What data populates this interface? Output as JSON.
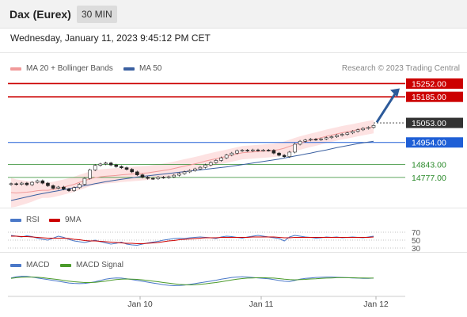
{
  "header": {
    "instrument": "Dax (Eurex)",
    "timeframe": "30 MIN",
    "datetime": "Wednesday, January 11, 2023 9:45:12 PM CET"
  },
  "legend": {
    "ma20_label": "MA 20 + Bollinger Bands",
    "ma50_label": "MA 50",
    "credit": "Research © 2023 Trading Central",
    "rsi_label": "RSI",
    "rsi_ma_label": "9MA",
    "macd_label": "MACD",
    "macd_signal_label": "MACD Signal"
  },
  "colors": {
    "candle": "#222222",
    "up_candle": "#ffffff",
    "bollinger_fill": "#fde2e2",
    "ma20": "#f19a9a",
    "ma50": "#3a5fa0",
    "resistance": "#cc0000",
    "pivot": "#333333",
    "support_blue": "#1f5fd6",
    "support_green": "#2a8a2a",
    "arrow": "#2c5a9a",
    "rsi": "#4a78c8",
    "rsi_ma": "#cc0000",
    "macd": "#4a78c8",
    "macd_signal": "#4a9a2a"
  },
  "icons": [
    "arrow-up-right-icon"
  ],
  "chart_data": [
    {
      "type": "candlestick",
      "ylim": [
        14640,
        15290
      ],
      "x_ticks": [
        "Jan 10",
        "Jan 11",
        "Jan 12"
      ],
      "levels": [
        {
          "value": 15252.0,
          "label": "15252.00",
          "style": "resistance"
        },
        {
          "value": 15185.0,
          "label": "15185.00",
          "style": "resistance"
        },
        {
          "value": 15053.0,
          "label": "15053.00",
          "style": "pivot"
        },
        {
          "value": 14954.0,
          "label": "14954.00",
          "style": "support_blue"
        },
        {
          "value": 14843.0,
          "label": "14843.00",
          "style": "support_green"
        },
        {
          "value": 14777.0,
          "label": "14777.00",
          "style": "support_green"
        }
      ],
      "close": [
        14745,
        14742,
        14748,
        14740,
        14752,
        14760,
        14748,
        14735,
        14722,
        14728,
        14718,
        14710,
        14725,
        14742,
        14772,
        14815,
        14838,
        14845,
        14850,
        14840,
        14832,
        14826,
        14818,
        14805,
        14790,
        14778,
        14772,
        14770,
        14778,
        14776,
        14780,
        14788,
        14796,
        14805,
        14812,
        14820,
        14828,
        14840,
        14852,
        14863,
        14876,
        14890,
        14900,
        14912,
        14915,
        14912,
        14916,
        14914,
        14915,
        14914,
        14900,
        14889,
        14882,
        14905,
        14945,
        14960,
        14966,
        14970,
        14968,
        14972,
        14978,
        14983,
        14990,
        14995,
        15002,
        15010,
        15018,
        15025,
        15030,
        15040
      ],
      "ma20": [
        14700,
        14698,
        14700,
        14702,
        14705,
        14710,
        14712,
        14712,
        14716,
        14722,
        14728,
        14735,
        14742,
        14752,
        14760,
        14770,
        14776,
        14780,
        14783,
        14785,
        14787,
        14790,
        14792,
        14794,
        14796,
        14798,
        14800,
        14804,
        14808,
        14812,
        14816,
        14822,
        14828,
        14834,
        14840,
        14846,
        14852,
        14860,
        14866,
        14872,
        14878,
        14884,
        14890,
        14896,
        14902,
        14904,
        14906,
        14908,
        14910,
        14912,
        14914,
        14918,
        14925,
        14934,
        14943,
        14951,
        14958,
        14965,
        14971,
        14978,
        14985,
        14991,
        14997,
        15003,
        15008,
        15013,
        15019,
        15024,
        15029,
        15034
      ],
      "ma50": [
        14660,
        14666,
        14672,
        14678,
        14684,
        14690,
        14695,
        14700,
        14705,
        14710,
        14715,
        14720,
        14725,
        14730,
        14735,
        14740,
        14745,
        14750,
        14755,
        14759,
        14763,
        14767,
        14771,
        14775,
        14779,
        14782,
        14785,
        14788,
        14791,
        14794,
        14797,
        14800,
        14803,
        14806,
        14809,
        14812,
        14815,
        14818,
        14821,
        14824,
        14827,
        14830,
        14834,
        14838,
        14842,
        14846,
        14850,
        14854,
        14858,
        14862,
        14866,
        14870,
        14875,
        14880,
        14885,
        14890,
        14895,
        14900,
        14906,
        14911,
        14916,
        14922,
        14928,
        14933,
        14938,
        14943,
        14948,
        14952,
        14956,
        14960
      ]
    },
    {
      "type": "line",
      "name": "RSI",
      "ylim": [
        20,
        80
      ],
      "y_ticks": [
        70,
        50,
        30
      ],
      "series": [
        {
          "name": "RSI",
          "values": [
            62,
            60,
            58,
            61,
            59,
            55,
            52,
            50,
            55,
            60,
            57,
            52,
            48,
            46,
            44,
            47,
            50,
            46,
            43,
            40,
            42,
            45,
            40,
            38,
            37,
            40,
            43,
            45,
            47,
            50,
            52,
            54,
            55,
            54,
            56,
            57,
            58,
            57,
            56,
            54,
            58,
            60,
            59,
            57,
            55,
            58,
            60,
            62,
            60,
            58,
            56,
            54,
            48,
            58,
            62,
            60,
            58,
            57,
            55,
            56,
            58,
            57,
            58,
            56,
            57,
            58,
            57,
            56,
            58,
            60
          ]
        },
        {
          "name": "9MA",
          "values": [
            60,
            60,
            59,
            59,
            58,
            57,
            56,
            55,
            55,
            55,
            55,
            54,
            52,
            51,
            49,
            48,
            48,
            47,
            46,
            45,
            44,
            43,
            42,
            42,
            41,
            41,
            42,
            43,
            44,
            46,
            48,
            49,
            51,
            52,
            53,
            54,
            55,
            56,
            56,
            56,
            57,
            57,
            57,
            57,
            57,
            57,
            58,
            58,
            58,
            58,
            58,
            57,
            56,
            56,
            57,
            57,
            57,
            57,
            57,
            57,
            57,
            57,
            57,
            57,
            57,
            57,
            57,
            57,
            57,
            58
          ]
        }
      ]
    },
    {
      "type": "line",
      "name": "MACD",
      "ylim": [
        -60,
        60
      ],
      "series": [
        {
          "name": "MACD",
          "values": [
            20,
            25,
            28,
            27,
            24,
            20,
            16,
            12,
            8,
            4,
            0,
            -4,
            -6,
            -7,
            -6,
            -3,
            2,
            8,
            14,
            18,
            20,
            19,
            16,
            12,
            8,
            4,
            0,
            -4,
            -8,
            -12,
            -15,
            -17,
            -16,
            -14,
            -11,
            -7,
            -3,
            1,
            5,
            9,
            14,
            18,
            22,
            24,
            25,
            24,
            22,
            20,
            18,
            16,
            12,
            8,
            4,
            3,
            8,
            14,
            18,
            20,
            22,
            23,
            24,
            24,
            23,
            22,
            21,
            20,
            19,
            18,
            18,
            19
          ]
        },
        {
          "name": "MACD Signal",
          "values": [
            18,
            21,
            23,
            24,
            24,
            23,
            21,
            18,
            15,
            12,
            8,
            5,
            2,
            0,
            -2,
            -2,
            -1,
            2,
            5,
            9,
            12,
            14,
            15,
            14,
            13,
            11,
            8,
            5,
            2,
            -2,
            -5,
            -8,
            -11,
            -12,
            -13,
            -12,
            -10,
            -8,
            -5,
            -2,
            2,
            6,
            10,
            14,
            17,
            19,
            20,
            21,
            21,
            20,
            19,
            17,
            14,
            12,
            11,
            12,
            13,
            15,
            16,
            18,
            19,
            20,
            21,
            21,
            21,
            21,
            20,
            20,
            19,
            19
          ]
        }
      ]
    }
  ]
}
